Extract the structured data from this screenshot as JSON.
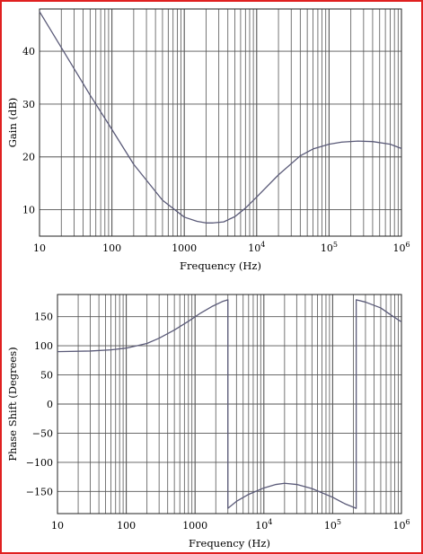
{
  "colors": {
    "frame": "#e02020",
    "grid": "#555555",
    "curve": "#5a5a78"
  },
  "chart_data": [
    {
      "type": "line",
      "title": "",
      "xlabel": "Frequency (Hz)",
      "ylabel": "Gain (dB)",
      "x_scale": "log",
      "xlim": [
        10,
        1000000
      ],
      "ylim": [
        5,
        48
      ],
      "grid": true,
      "x_ticks": [
        {
          "value": 10,
          "label": "10"
        },
        {
          "value": 100,
          "label": "100"
        },
        {
          "value": 1000,
          "label": "1000"
        },
        {
          "value": 10000,
          "base": "10",
          "exp": "4"
        },
        {
          "value": 100000,
          "base": "10",
          "exp": "5"
        },
        {
          "value": 1000000,
          "base": "10",
          "exp": "6"
        }
      ],
      "y_ticks": [
        10,
        20,
        30,
        40
      ],
      "series": [
        {
          "x": [
            10,
            20,
            50,
            100,
            200,
            500,
            1000,
            1500,
            2000,
            2500,
            3500,
            5000,
            7000,
            10000,
            20000,
            40000,
            60000,
            100000,
            150000,
            250000,
            400000,
            700000,
            1000000
          ],
          "y": [
            47.5,
            40.7,
            31.7,
            25.2,
            18.6,
            11.8,
            8.6,
            7.8,
            7.5,
            7.5,
            7.7,
            8.7,
            10.3,
            12.4,
            16.6,
            20.2,
            21.5,
            22.4,
            22.8,
            23.0,
            22.9,
            22.4,
            21.6
          ]
        }
      ]
    },
    {
      "type": "line",
      "title": "",
      "xlabel": "Frequency (Hz)",
      "ylabel": "Phase Shift (Degrees)",
      "x_scale": "log",
      "xlim": [
        10,
        1000000
      ],
      "ylim": [
        -188,
        188
      ],
      "grid": true,
      "x_ticks": [
        {
          "value": 10,
          "label": "10"
        },
        {
          "value": 100,
          "label": "100"
        },
        {
          "value": 1000,
          "label": "1000"
        },
        {
          "value": 10000,
          "base": "10",
          "exp": "4"
        },
        {
          "value": 100000,
          "base": "10",
          "exp": "5"
        },
        {
          "value": 1000000,
          "base": "10",
          "exp": "6"
        }
      ],
      "y_ticks": [
        150,
        100,
        50,
        0,
        -50,
        -100,
        -150
      ],
      "series": [
        {
          "x": [
            10,
            30,
            60,
            100,
            200,
            300,
            500,
            800,
            1200,
            1800,
            2500,
            3000,
            3000,
            4000,
            6000,
            10000,
            15000,
            20000,
            30000,
            50000,
            100000,
            150000,
            200000,
            220000,
            220000,
            300000,
            500000,
            700000,
            1000000
          ],
          "y": [
            90,
            91,
            93,
            96,
            104,
            113,
            127,
            142,
            156,
            168,
            176,
            179,
            -179,
            -167,
            -155,
            -144,
            -138,
            -136,
            -138,
            -145,
            -160,
            -171,
            -177,
            -179,
            179,
            175,
            165,
            153,
            141
          ]
        }
      ]
    }
  ]
}
